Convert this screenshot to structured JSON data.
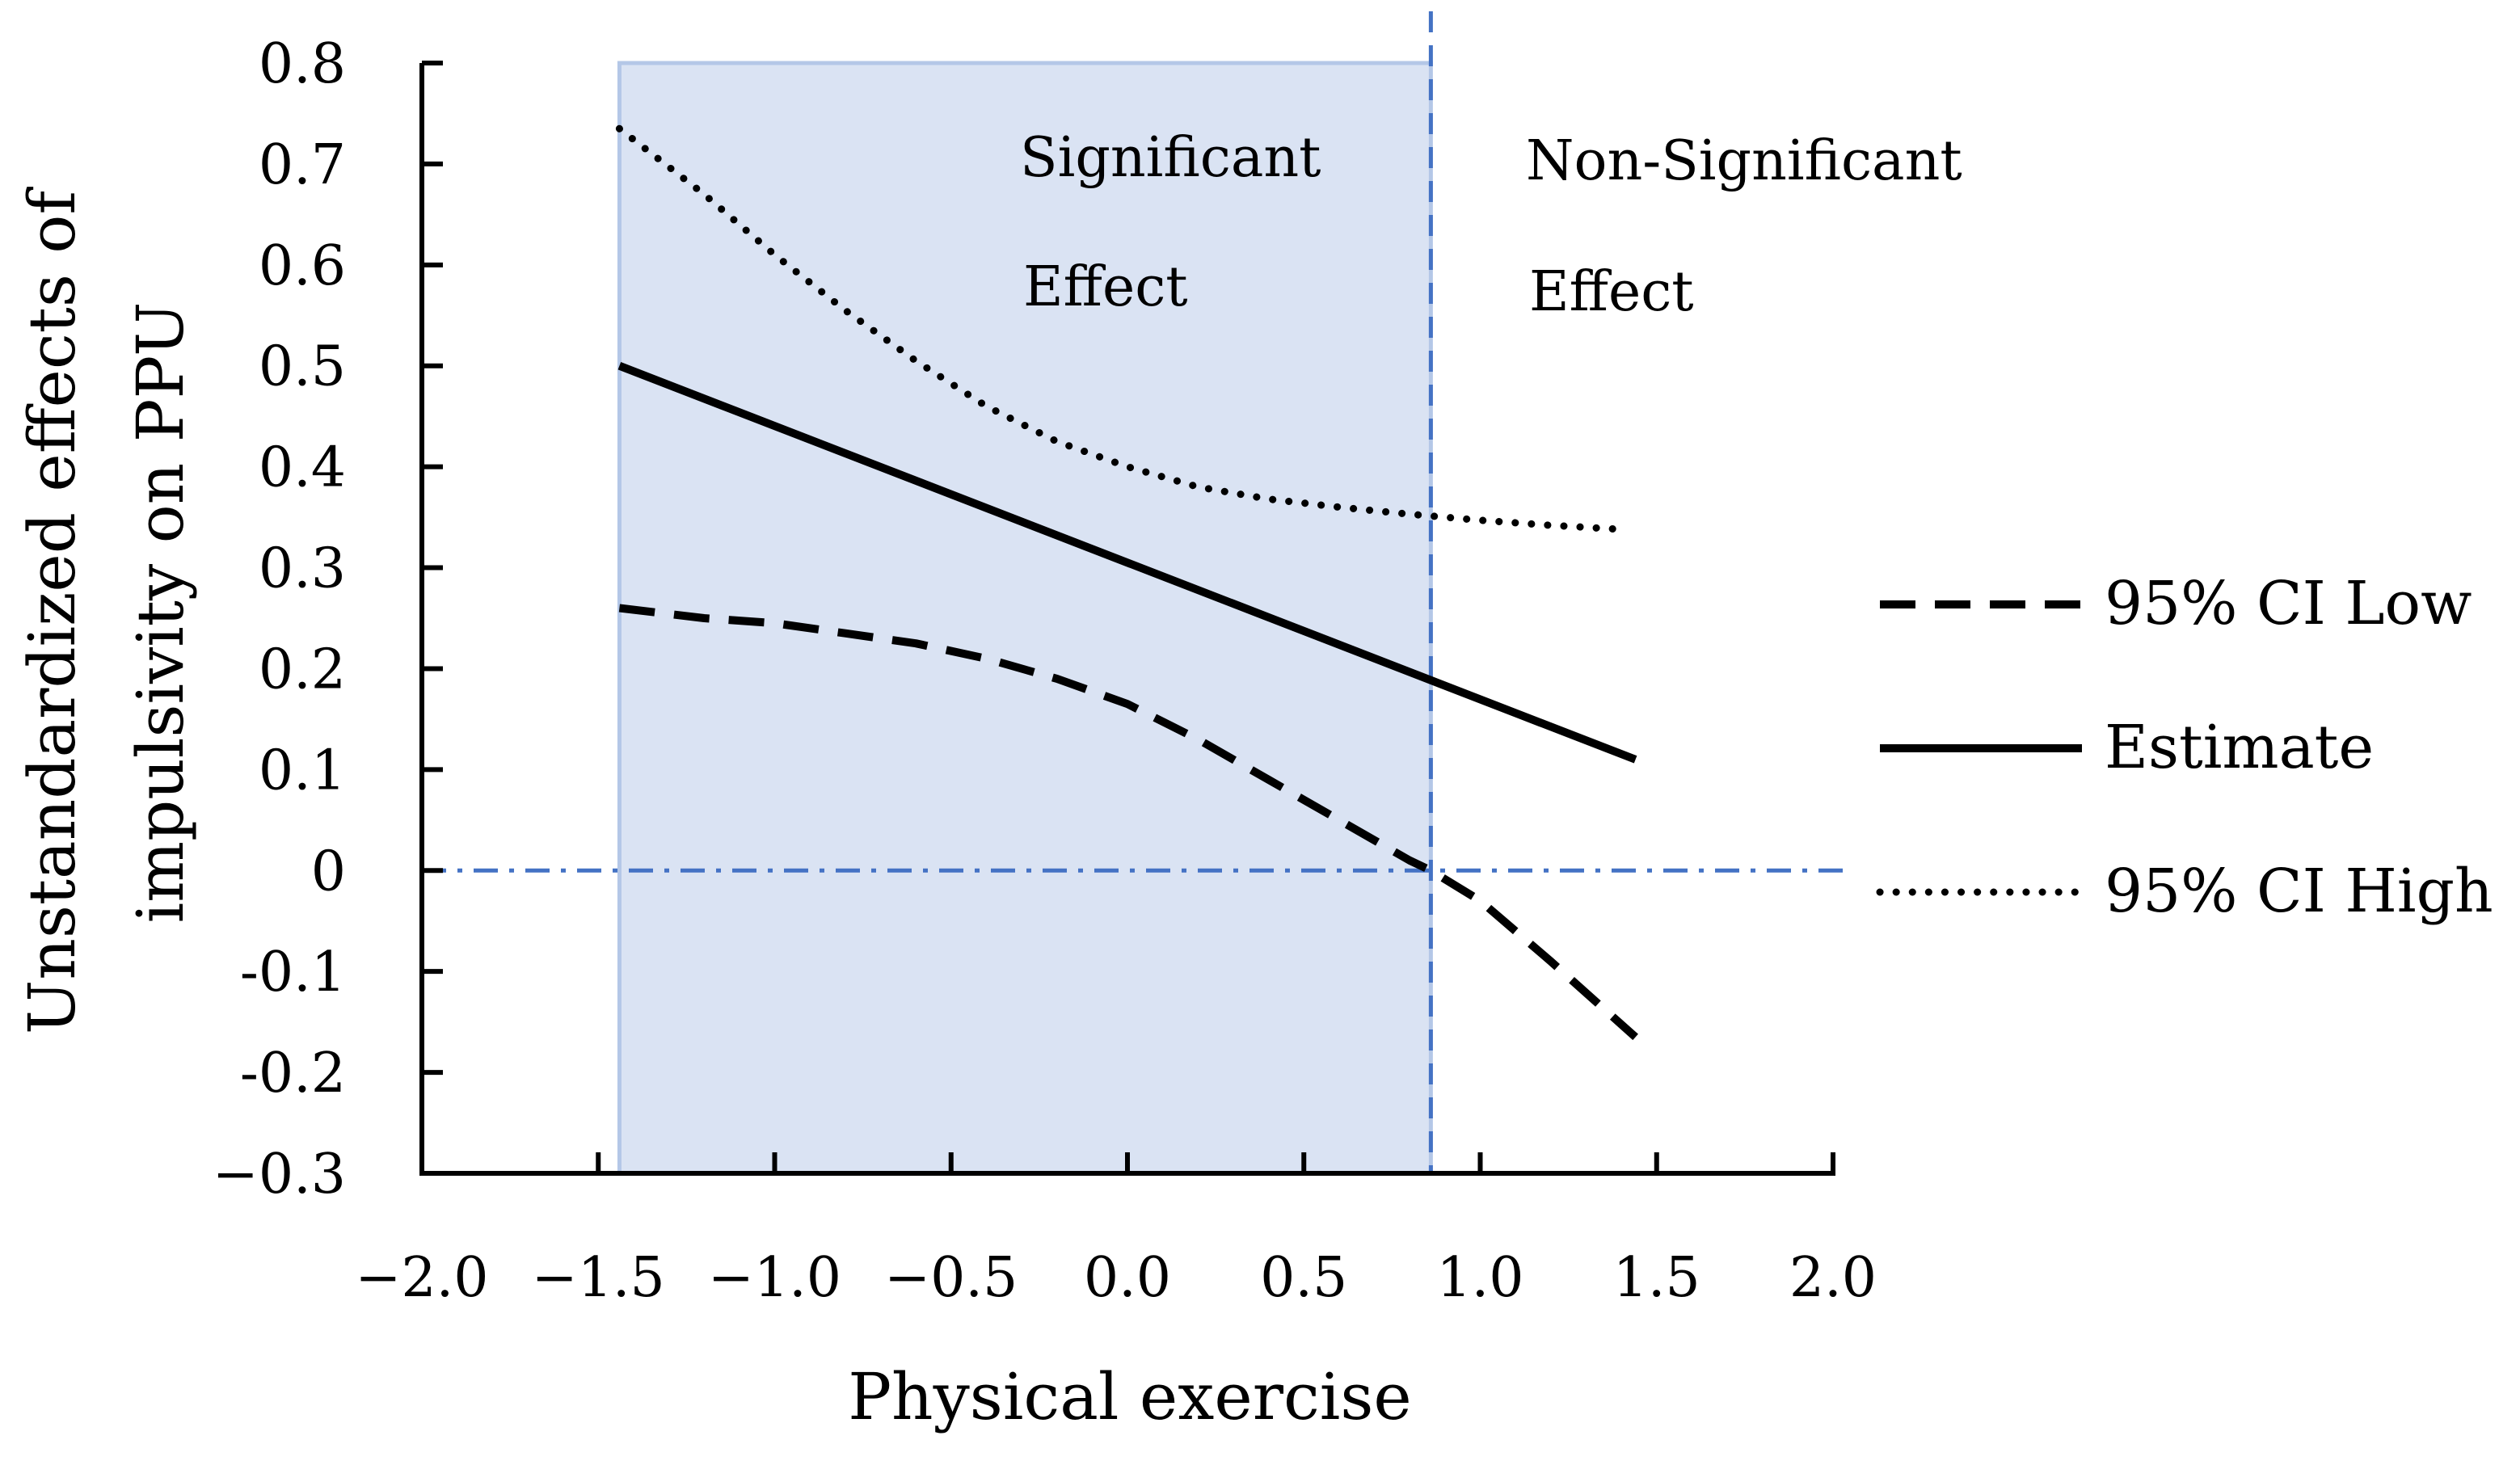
{
  "chart_data": {
    "type": "line",
    "title": "",
    "xlabel": "Physical exercise",
    "ylabel_line1": "Unstandardized effects of",
    "ylabel_line2": "impulsivity on PPU",
    "xlim": [
      -2.0,
      2.0
    ],
    "ylim": [
      -0.3,
      0.8
    ],
    "x_ticks": [
      -2.0,
      -1.5,
      -1.0,
      -0.5,
      0.0,
      0.5,
      1.0,
      1.5,
      2.0
    ],
    "x_tick_labels": [
      "−2.0",
      "−1.5",
      "−1.0",
      "−0.5",
      "0.0",
      "0.5",
      "1.0",
      "1.5",
      "2.0"
    ],
    "y_ticks": [
      0.8,
      0.7,
      0.6,
      0.5,
      0.4,
      0.3,
      0.2,
      0.1,
      0,
      -0.1,
      -0.2,
      -0.3
    ],
    "y_tick_labels": [
      "0.8",
      "0.7",
      "0.6",
      "0.5",
      "0.4",
      "0.3",
      "0.2",
      "0.1",
      "0",
      "-0.1",
      "-0.2",
      "−0.3"
    ],
    "significant_region": {
      "x_start": -1.44,
      "x_end": 0.86
    },
    "zero_line_y": 0,
    "region_labels": {
      "significant_line1": "Significant",
      "significant_line2": "Effect",
      "nonsignificant_line1": "Non-Significant",
      "nonsignificant_line2": "Effect"
    },
    "series": [
      {
        "name": "95% CI Low",
        "style": "dashed",
        "x": [
          -1.44,
          -1.2,
          -1.0,
          -0.8,
          -0.6,
          -0.4,
          -0.2,
          0.0,
          0.2,
          0.4,
          0.6,
          0.8,
          0.86,
          1.0,
          1.2,
          1.44
        ],
        "y": [
          0.26,
          0.25,
          0.245,
          0.235,
          0.225,
          0.21,
          0.19,
          0.165,
          0.13,
          0.09,
          0.05,
          0.01,
          0.0,
          -0.03,
          -0.09,
          -0.165
        ]
      },
      {
        "name": "Estimate",
        "style": "solid",
        "x": [
          -1.44,
          1.44
        ],
        "y": [
          0.5,
          0.11
        ]
      },
      {
        "name": "95% CI High",
        "style": "dotted",
        "x": [
          -1.44,
          -1.2,
          -1.0,
          -0.8,
          -0.6,
          -0.4,
          -0.2,
          0.0,
          0.2,
          0.4,
          0.6,
          0.8,
          1.0,
          1.2,
          1.4
        ],
        "y": [
          0.735,
          0.67,
          0.61,
          0.555,
          0.505,
          0.46,
          0.425,
          0.4,
          0.38,
          0.368,
          0.36,
          0.353,
          0.347,
          0.342,
          0.338
        ]
      }
    ],
    "legend_order": [
      "95% CI Low",
      "Estimate",
      "95% CI High"
    ]
  },
  "colors": {
    "region_fill": "#dae3f3",
    "region_border": "#b4c7e7",
    "reference_line": "#4472c4",
    "ink": "#000000"
  }
}
